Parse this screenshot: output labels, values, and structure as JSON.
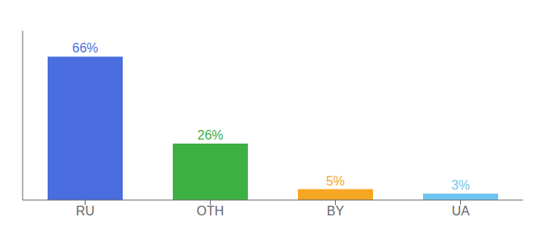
{
  "chart_data": {
    "type": "bar",
    "categories": [
      "RU",
      "OTH",
      "BY",
      "UA"
    ],
    "values": [
      66,
      26,
      5,
      3
    ],
    "value_labels": [
      "66%",
      "26%",
      "5%",
      "3%"
    ],
    "data_labels": true,
    "colors": [
      "#4a6ee0",
      "#3cb043",
      "#f5a623",
      "#6ec6f0"
    ],
    "ylim": [
      0,
      78
    ],
    "grid": false,
    "tick_labels": "x"
  }
}
